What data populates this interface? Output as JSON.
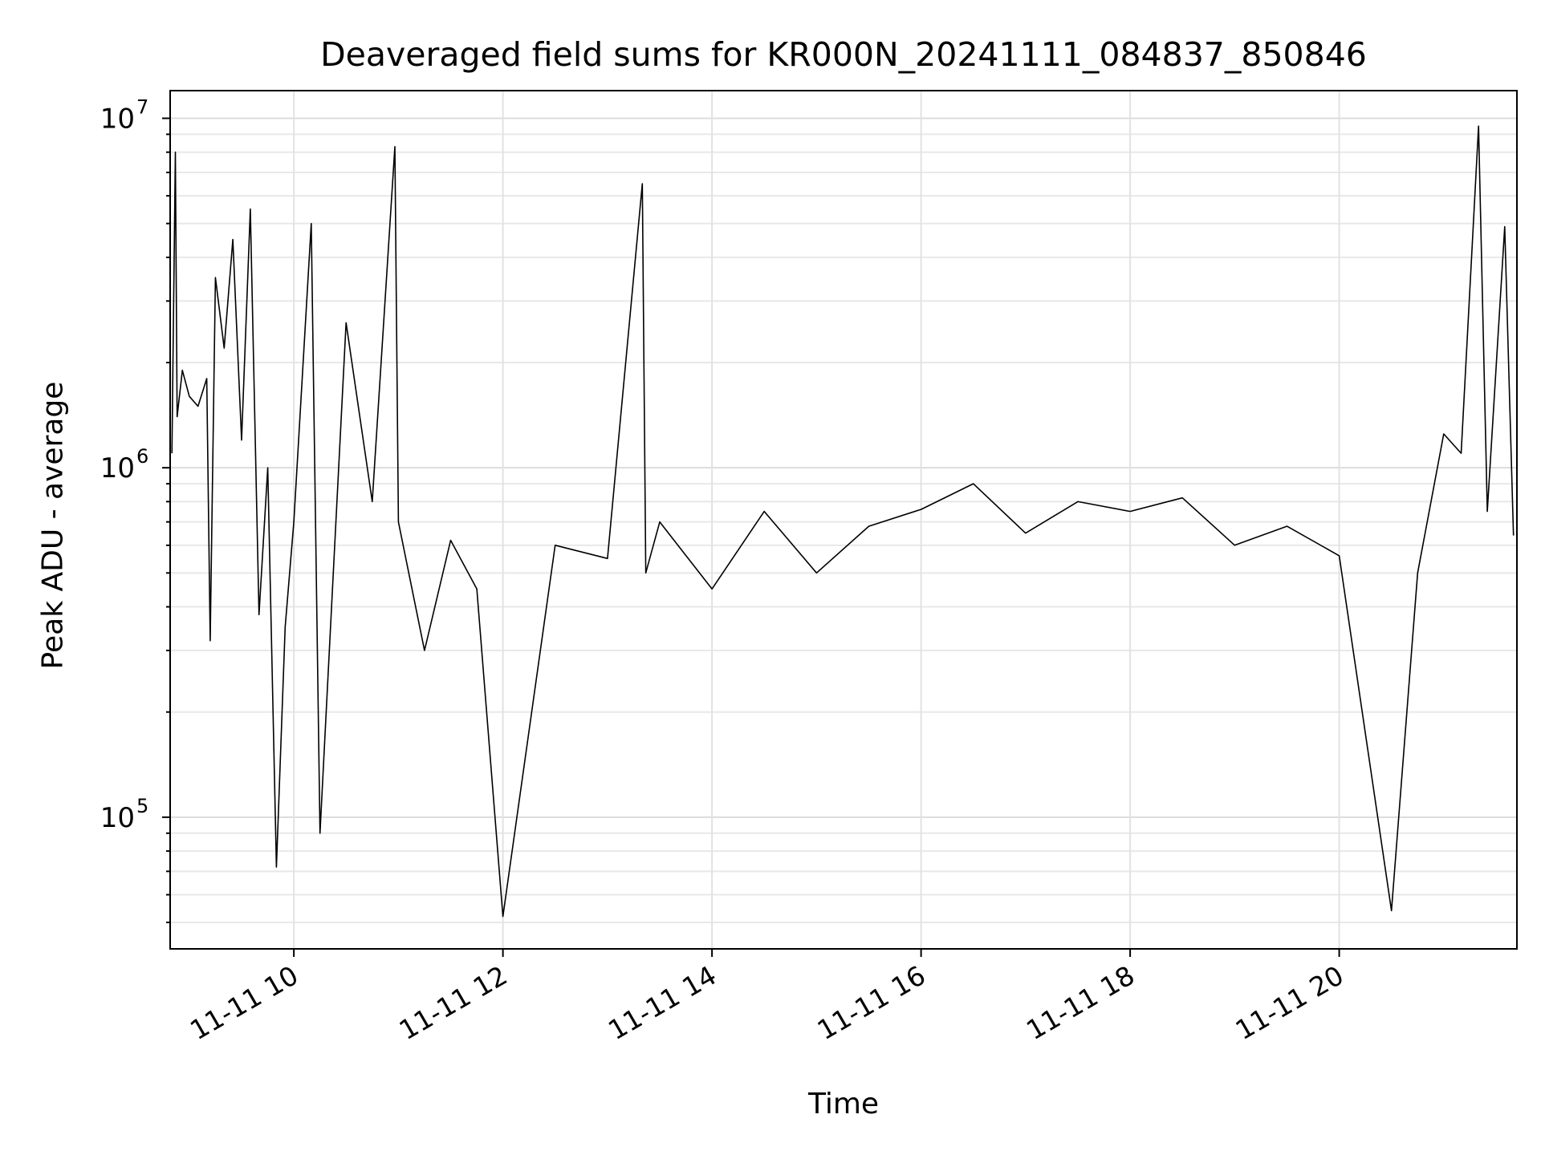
{
  "chart_data": {
    "type": "line",
    "title": "Deaveraged field sums for KR000N_20241111_084837_850846",
    "xlabel": "Time",
    "ylabel": "Peak ADU - average",
    "y_scale": "log",
    "ylim": [
      42000,
      12000000
    ],
    "xlim": [
      "2024-11-11 08:49",
      "2024-11-11 21:42"
    ],
    "grid": true,
    "x_ticks": [
      "11-11 10",
      "11-11 12",
      "11-11 14",
      "11-11 16",
      "11-11 18",
      "11-11 20"
    ],
    "y_ticks": [
      {
        "base": "10",
        "exp": "5",
        "value": 100000
      },
      {
        "base": "10",
        "exp": "6",
        "value": 1000000
      },
      {
        "base": "10",
        "exp": "7",
        "value": 10000000
      }
    ],
    "line_color": "#000000",
    "series": [
      {
        "x": [
          "2024-11-11 08:50",
          "2024-11-11 08:52",
          "2024-11-11 08:53",
          "2024-11-11 08:56",
          "2024-11-11 09:00",
          "2024-11-11 09:05",
          "2024-11-11 09:10",
          "2024-11-11 09:12",
          "2024-11-11 09:15",
          "2024-11-11 09:20",
          "2024-11-11 09:25",
          "2024-11-11 09:30",
          "2024-11-11 09:35",
          "2024-11-11 09:40",
          "2024-11-11 09:45",
          "2024-11-11 09:50",
          "2024-11-11 09:55",
          "2024-11-11 10:00",
          "2024-11-11 10:10",
          "2024-11-11 10:15",
          "2024-11-11 10:30",
          "2024-11-11 10:45",
          "2024-11-11 10:58",
          "2024-11-11 11:00",
          "2024-11-11 11:15",
          "2024-11-11 11:30",
          "2024-11-11 11:45",
          "2024-11-11 12:00",
          "2024-11-11 12:30",
          "2024-11-11 13:00",
          "2024-11-11 13:20",
          "2024-11-11 13:22",
          "2024-11-11 13:30",
          "2024-11-11 14:00",
          "2024-11-11 14:30",
          "2024-11-11 15:00",
          "2024-11-11 15:30",
          "2024-11-11 16:00",
          "2024-11-11 16:30",
          "2024-11-11 17:00",
          "2024-11-11 17:30",
          "2024-11-11 18:00",
          "2024-11-11 18:30",
          "2024-11-11 19:00",
          "2024-11-11 19:30",
          "2024-11-11 20:00",
          "2024-11-11 20:30",
          "2024-11-11 20:45",
          "2024-11-11 21:00",
          "2024-11-11 21:10",
          "2024-11-11 21:20",
          "2024-11-11 21:25",
          "2024-11-11 21:35",
          "2024-11-11 21:40"
        ],
        "y": [
          1100000,
          8000000,
          1400000,
          1900000,
          1600000,
          1500000,
          1800000,
          320000,
          3500000,
          2200000,
          4500000,
          1200000,
          5500000,
          380000,
          1000000,
          72000,
          350000,
          700000,
          5000000,
          90000,
          2600000,
          800000,
          8300000,
          700000,
          300000,
          620000,
          450000,
          52000,
          600000,
          550000,
          6500000,
          500000,
          700000,
          450000,
          750000,
          500000,
          680000,
          760000,
          900000,
          650000,
          800000,
          750000,
          820000,
          600000,
          680000,
          560000,
          54000,
          500000,
          1250000,
          1100000,
          9500000,
          750000,
          4900000,
          640000
        ]
      }
    ]
  }
}
